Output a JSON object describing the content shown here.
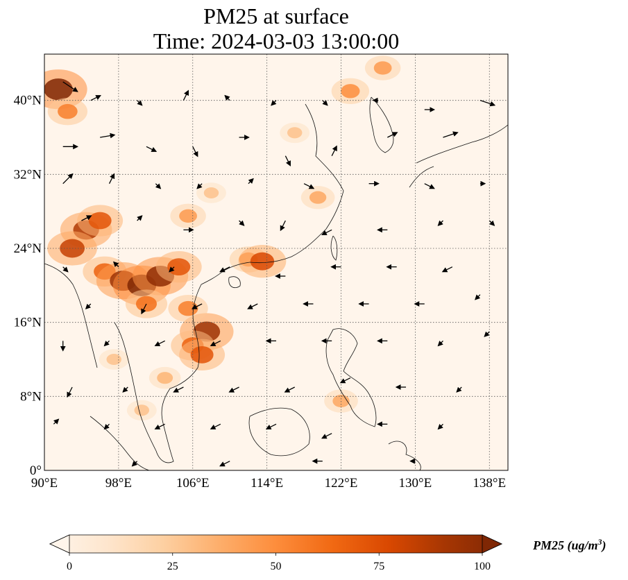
{
  "title": {
    "line1": "PM25 at surface",
    "line2": "Time: 2024-03-03 13:00:00"
  },
  "map": {
    "extent": {
      "lon_min": 90,
      "lon_max": 140,
      "lat_min": 0,
      "lat_max": 45
    },
    "lon_ticks": [
      {
        "value": 90,
        "label": "90°E"
      },
      {
        "value": 98,
        "label": "98°E"
      },
      {
        "value": 106,
        "label": "106°E"
      },
      {
        "value": 114,
        "label": "114°E"
      },
      {
        "value": 122,
        "label": "122°E"
      },
      {
        "value": 130,
        "label": "130°E"
      },
      {
        "value": 138,
        "label": "138°E"
      }
    ],
    "lat_ticks": [
      {
        "value": 0,
        "label": "0°"
      },
      {
        "value": 8,
        "label": "8°N"
      },
      {
        "value": 16,
        "label": "16°N"
      },
      {
        "value": 24,
        "label": "24°N"
      },
      {
        "value": 32,
        "label": "32°N"
      },
      {
        "value": 40,
        "label": "40°N"
      }
    ],
    "gridlines": true,
    "background_color": "#fff5eb",
    "hotspots": [
      {
        "lon": 91.5,
        "lat": 41.2,
        "level": 100
      },
      {
        "lon": 92.5,
        "lat": 38.8,
        "level": 55
      },
      {
        "lon": 94.5,
        "lat": 26.0,
        "level": 85
      },
      {
        "lon": 93.0,
        "lat": 24.0,
        "level": 80
      },
      {
        "lon": 96.0,
        "lat": 27.0,
        "level": 70
      },
      {
        "lon": 96.5,
        "lat": 21.5,
        "level": 65
      },
      {
        "lon": 98.5,
        "lat": 20.5,
        "level": 90
      },
      {
        "lon": 100.5,
        "lat": 20.0,
        "level": 100
      },
      {
        "lon": 102.5,
        "lat": 21.0,
        "level": 95
      },
      {
        "lon": 104.5,
        "lat": 22.0,
        "level": 70
      },
      {
        "lon": 101.0,
        "lat": 18.0,
        "level": 60
      },
      {
        "lon": 107.5,
        "lat": 15.0,
        "level": 90
      },
      {
        "lon": 106.0,
        "lat": 13.5,
        "level": 65
      },
      {
        "lon": 107.0,
        "lat": 12.5,
        "level": 70
      },
      {
        "lon": 105.5,
        "lat": 17.5,
        "level": 55
      },
      {
        "lon": 103.0,
        "lat": 10.0,
        "level": 35
      },
      {
        "lon": 97.5,
        "lat": 12.0,
        "level": 30
      },
      {
        "lon": 112.0,
        "lat": 22.8,
        "level": 50
      },
      {
        "lon": 113.5,
        "lat": 22.6,
        "level": 75
      },
      {
        "lon": 105.5,
        "lat": 27.5,
        "level": 45
      },
      {
        "lon": 108.0,
        "lat": 30.0,
        "level": 30
      },
      {
        "lon": 119.5,
        "lat": 29.5,
        "level": 40
      },
      {
        "lon": 117.0,
        "lat": 36.5,
        "level": 30
      },
      {
        "lon": 123.0,
        "lat": 41.0,
        "level": 50
      },
      {
        "lon": 126.5,
        "lat": 43.5,
        "level": 45
      },
      {
        "lon": 122.0,
        "lat": 7.5,
        "level": 40
      },
      {
        "lon": 100.5,
        "lat": 6.5,
        "level": 30
      }
    ],
    "wind_vectors": [
      {
        "lon": 92,
        "lat": 42,
        "u": 3,
        "v": -2
      },
      {
        "lon": 95,
        "lat": 40,
        "u": 2,
        "v": 1
      },
      {
        "lon": 100,
        "lat": 40,
        "u": 1,
        "v": -1
      },
      {
        "lon": 105,
        "lat": 40,
        "u": 1,
        "v": 2
      },
      {
        "lon": 110,
        "lat": 40,
        "u": -1,
        "v": 1
      },
      {
        "lon": 115,
        "lat": 40,
        "u": -1,
        "v": -1
      },
      {
        "lon": 120,
        "lat": 40,
        "u": 1,
        "v": -1
      },
      {
        "lon": 126,
        "lat": 40,
        "u": -1,
        "v": 0
      },
      {
        "lon": 131,
        "lat": 39,
        "u": 2,
        "v": 0
      },
      {
        "lon": 137,
        "lat": 40,
        "u": 3,
        "v": -1
      },
      {
        "lon": 92,
        "lat": 35,
        "u": 3,
        "v": 0
      },
      {
        "lon": 96,
        "lat": 36,
        "u": 3,
        "v": 0.5
      },
      {
        "lon": 101,
        "lat": 35,
        "u": 2,
        "v": -1
      },
      {
        "lon": 106,
        "lat": 35,
        "u": 1,
        "v": -2
      },
      {
        "lon": 111,
        "lat": 36,
        "u": 2,
        "v": 0
      },
      {
        "lon": 116,
        "lat": 34,
        "u": 1,
        "v": -2
      },
      {
        "lon": 121,
        "lat": 34,
        "u": 1,
        "v": 2
      },
      {
        "lon": 127,
        "lat": 36,
        "u": 2,
        "v": 1
      },
      {
        "lon": 133,
        "lat": 36,
        "u": 3,
        "v": 1
      },
      {
        "lon": 92,
        "lat": 31,
        "u": 2,
        "v": 2
      },
      {
        "lon": 97,
        "lat": 31,
        "u": 1,
        "v": 2
      },
      {
        "lon": 102,
        "lat": 31,
        "u": 1,
        "v": -1
      },
      {
        "lon": 107,
        "lat": 31,
        "u": -1,
        "v": -1
      },
      {
        "lon": 112,
        "lat": 31,
        "u": 1,
        "v": 1
      },
      {
        "lon": 118,
        "lat": 31,
        "u": 2,
        "v": -1
      },
      {
        "lon": 125,
        "lat": 31,
        "u": 2,
        "v": 0
      },
      {
        "lon": 131,
        "lat": 31,
        "u": 2,
        "v": -1
      },
      {
        "lon": 137,
        "lat": 31,
        "u": 1,
        "v": 0
      },
      {
        "lon": 94,
        "lat": 27,
        "u": 2,
        "v": 1
      },
      {
        "lon": 100,
        "lat": 27,
        "u": 1,
        "v": 1
      },
      {
        "lon": 105,
        "lat": 26,
        "u": 2,
        "v": 0
      },
      {
        "lon": 111,
        "lat": 27,
        "u": 1,
        "v": -1
      },
      {
        "lon": 116,
        "lat": 27,
        "u": -1,
        "v": -2
      },
      {
        "lon": 121,
        "lat": 26,
        "u": -2,
        "v": -1
      },
      {
        "lon": 127,
        "lat": 26,
        "u": -2,
        "v": 0
      },
      {
        "lon": 133,
        "lat": 27,
        "u": -1,
        "v": -1
      },
      {
        "lon": 138,
        "lat": 27,
        "u": 1,
        "v": -1
      },
      {
        "lon": 92,
        "lat": 22,
        "u": 1,
        "v": -1
      },
      {
        "lon": 98,
        "lat": 22,
        "u": -1,
        "v": 1
      },
      {
        "lon": 104,
        "lat": 22,
        "u": -1,
        "v": -1
      },
      {
        "lon": 110,
        "lat": 22,
        "u": -2,
        "v": -1
      },
      {
        "lon": 116,
        "lat": 21,
        "u": -2,
        "v": 0
      },
      {
        "lon": 122,
        "lat": 22,
        "u": -2,
        "v": 0
      },
      {
        "lon": 128,
        "lat": 22,
        "u": -2,
        "v": 0
      },
      {
        "lon": 134,
        "lat": 22,
        "u": -2,
        "v": -1
      },
      {
        "lon": 95,
        "lat": 18,
        "u": -1,
        "v": -1
      },
      {
        "lon": 101,
        "lat": 18,
        "u": -1,
        "v": -2
      },
      {
        "lon": 107,
        "lat": 18,
        "u": -2,
        "v": -1
      },
      {
        "lon": 113,
        "lat": 18,
        "u": -2,
        "v": -1
      },
      {
        "lon": 119,
        "lat": 18,
        "u": -2,
        "v": 0
      },
      {
        "lon": 125,
        "lat": 18,
        "u": -2,
        "v": 0
      },
      {
        "lon": 131,
        "lat": 18,
        "u": -2,
        "v": 0
      },
      {
        "lon": 137,
        "lat": 19,
        "u": -1,
        "v": -1
      },
      {
        "lon": 92,
        "lat": 14,
        "u": 0,
        "v": -2
      },
      {
        "lon": 97,
        "lat": 14,
        "u": -1,
        "v": -1
      },
      {
        "lon": 103,
        "lat": 14,
        "u": -2,
        "v": -1
      },
      {
        "lon": 109,
        "lat": 14,
        "u": -2,
        "v": -1
      },
      {
        "lon": 115,
        "lat": 14,
        "u": -2,
        "v": 0
      },
      {
        "lon": 121,
        "lat": 14,
        "u": -2,
        "v": 0
      },
      {
        "lon": 127,
        "lat": 14,
        "u": -2,
        "v": 0
      },
      {
        "lon": 133,
        "lat": 14,
        "u": -1,
        "v": -1
      },
      {
        "lon": 138,
        "lat": 15,
        "u": -1,
        "v": -1
      },
      {
        "lon": 93,
        "lat": 9,
        "u": -1,
        "v": -2
      },
      {
        "lon": 99,
        "lat": 9,
        "u": -1,
        "v": -1
      },
      {
        "lon": 105,
        "lat": 9,
        "u": -2,
        "v": -1
      },
      {
        "lon": 111,
        "lat": 9,
        "u": -2,
        "v": -1
      },
      {
        "lon": 117,
        "lat": 9,
        "u": -2,
        "v": -1
      },
      {
        "lon": 123,
        "lat": 10,
        "u": -2,
        "v": -1
      },
      {
        "lon": 129,
        "lat": 9,
        "u": -2,
        "v": 0
      },
      {
        "lon": 135,
        "lat": 9,
        "u": -1,
        "v": -1
      },
      {
        "lon": 91,
        "lat": 5,
        "u": 1,
        "v": 1
      },
      {
        "lon": 97,
        "lat": 5,
        "u": -1,
        "v": -1
      },
      {
        "lon": 103,
        "lat": 5,
        "u": -2,
        "v": -1
      },
      {
        "lon": 109,
        "lat": 5,
        "u": -2,
        "v": -1
      },
      {
        "lon": 115,
        "lat": 5,
        "u": -2,
        "v": -1
      },
      {
        "lon": 121,
        "lat": 4,
        "u": -2,
        "v": -1
      },
      {
        "lon": 127,
        "lat": 5,
        "u": -2,
        "v": 0
      },
      {
        "lon": 133,
        "lat": 5,
        "u": -1,
        "v": -1
      },
      {
        "lon": 100,
        "lat": 1,
        "u": -1,
        "v": -1
      },
      {
        "lon": 110,
        "lat": 1,
        "u": -2,
        "v": -1
      },
      {
        "lon": 120,
        "lat": 1,
        "u": -2,
        "v": 0
      },
      {
        "lon": 130,
        "lat": 1,
        "u": -1,
        "v": 0
      }
    ]
  },
  "colorbar": {
    "label": "PM25 (ug/m",
    "label_sup": "3",
    "label_close": ")",
    "min": 0,
    "max": 100,
    "ticks": [
      {
        "value": 0,
        "label": "0"
      },
      {
        "value": 25,
        "label": "25"
      },
      {
        "value": 50,
        "label": "50"
      },
      {
        "value": 75,
        "label": "75"
      },
      {
        "value": 100,
        "label": "100"
      }
    ],
    "colors": [
      "#fff5eb",
      "#fee6ce",
      "#fdd0a2",
      "#fdae6b",
      "#fd8d3c",
      "#f16913",
      "#d94801",
      "#a63603",
      "#7f2704"
    ],
    "extend": "both"
  }
}
